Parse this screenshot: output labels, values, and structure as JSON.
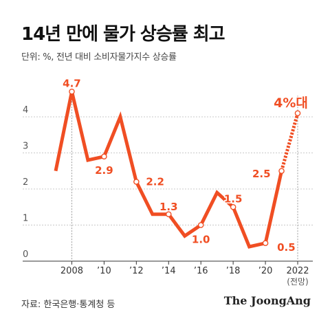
{
  "title": "14년 만에 물가 상승률 최고",
  "subtitle": "단위: %, 전년 대비 소비자물가지수 상승률",
  "footer": {
    "source": "자료: 한국은행·통계청 등",
    "brand": "The JoongAng"
  },
  "colors": {
    "line": "#f04e23",
    "grid": "#c8c8c8",
    "axis": "#555555"
  },
  "chart_data": {
    "type": "line",
    "title": "14년 만에 물가 상승률 최고",
    "ylabel": "단위: %",
    "ylim": [
      0,
      5
    ],
    "y_ticks": [
      0,
      1,
      2,
      3,
      4
    ],
    "x_range": [
      2007,
      2022
    ],
    "x_ticks": [
      {
        "x": 2008,
        "label": "2008"
      },
      {
        "x": 2010,
        "label": "’10"
      },
      {
        "x": 2012,
        "label": "’12"
      },
      {
        "x": 2014,
        "label": "’14"
      },
      {
        "x": 2016,
        "label": "’16"
      },
      {
        "x": 2018,
        "label": "’18"
      },
      {
        "x": 2020,
        "label": "’20"
      },
      {
        "x": 2022,
        "label": "2022"
      }
    ],
    "x_tick_sublabel": "(전망)",
    "series": [
      {
        "values": [
          {
            "x": 2007,
            "y": 2.5
          },
          {
            "x": 2008,
            "y": 4.7
          },
          {
            "x": 2009,
            "y": 2.8
          },
          {
            "x": 2010,
            "y": 2.9
          },
          {
            "x": 2011,
            "y": 4.0
          },
          {
            "x": 2012,
            "y": 2.2
          },
          {
            "x": 2013,
            "y": 1.3
          },
          {
            "x": 2014,
            "y": 1.3
          },
          {
            "x": 2015,
            "y": 0.7
          },
          {
            "x": 2016,
            "y": 1.0
          },
          {
            "x": 2017,
            "y": 1.9
          },
          {
            "x": 2018,
            "y": 1.5
          },
          {
            "x": 2019,
            "y": 0.4
          },
          {
            "x": 2020,
            "y": 0.5
          },
          {
            "x": 2021,
            "y": 2.5
          }
        ]
      },
      {
        "style": "dashed",
        "values": [
          {
            "x": 2021,
            "y": 2.5
          },
          {
            "x": 2022,
            "y": 4.1
          }
        ]
      }
    ],
    "data_labels": [
      {
        "x": 2008,
        "y": 4.7,
        "text": "4.7"
      },
      {
        "x": 2010,
        "y": 2.9,
        "text": "2.9"
      },
      {
        "x": 2012,
        "y": 2.2,
        "text": "2.2"
      },
      {
        "x": 2014,
        "y": 1.3,
        "text": "1.3"
      },
      {
        "x": 2016,
        "y": 1.0,
        "text": "1.0"
      },
      {
        "x": 2018,
        "y": 1.5,
        "text": "1.5"
      },
      {
        "x": 2020,
        "y": 0.5,
        "text": "0.5"
      },
      {
        "x": 2021,
        "y": 2.5,
        "text": "2.5"
      },
      {
        "x": 2022,
        "y": 4.1,
        "text": "4%대"
      }
    ],
    "markers": [
      2008,
      2010,
      2012,
      2014,
      2016,
      2018,
      2020,
      2021,
      2022
    ],
    "grid": true,
    "highlight_vlines": [
      2008,
      2022
    ]
  }
}
